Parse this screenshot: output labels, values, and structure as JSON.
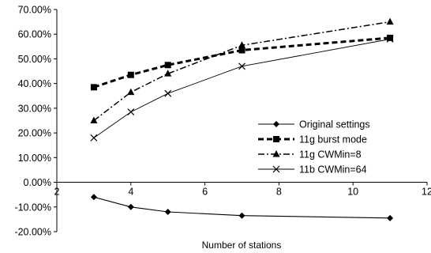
{
  "chart_data": {
    "type": "line",
    "title": "",
    "xlabel": "Number of stations",
    "ylabel": "",
    "xlim": [
      2,
      12
    ],
    "ylim": [
      -0.2,
      0.7
    ],
    "x_ticks": [
      2,
      4,
      6,
      8,
      10,
      12
    ],
    "y_ticks": [
      -0.2,
      -0.1,
      0,
      0.1,
      0.2,
      0.3,
      0.4,
      0.5,
      0.6,
      0.7
    ],
    "y_tick_labels": [
      "-20.00%",
      "-10.00%",
      "0.00%",
      "10.00%",
      "20.00%",
      "30.00%",
      "40.00%",
      "50.00%",
      "60.00%",
      "70.00%"
    ],
    "grid": false,
    "legend_position": "lower-right",
    "series": [
      {
        "name": "Original settings",
        "marker": "diamond",
        "line_style": "solid",
        "x": [
          3,
          4,
          5,
          7,
          11
        ],
        "values": [
          -0.06,
          -0.1,
          -0.12,
          -0.135,
          -0.145
        ]
      },
      {
        "name": "11g burst mode",
        "marker": "square",
        "line_style": "dashed",
        "x": [
          3,
          4,
          5,
          7,
          11
        ],
        "values": [
          0.385,
          0.435,
          0.475,
          0.535,
          0.585
        ]
      },
      {
        "name": "11g CWMin=8",
        "marker": "triangle",
        "line_style": "dash-dot",
        "x": [
          3,
          4,
          5,
          7,
          11
        ],
        "values": [
          0.25,
          0.365,
          0.44,
          0.555,
          0.65
        ]
      },
      {
        "name": "11b CWMin=64",
        "marker": "x",
        "line_style": "solid-thin",
        "x": [
          3,
          4,
          5,
          7,
          11
        ],
        "values": [
          0.18,
          0.285,
          0.36,
          0.47,
          0.58
        ]
      }
    ]
  }
}
